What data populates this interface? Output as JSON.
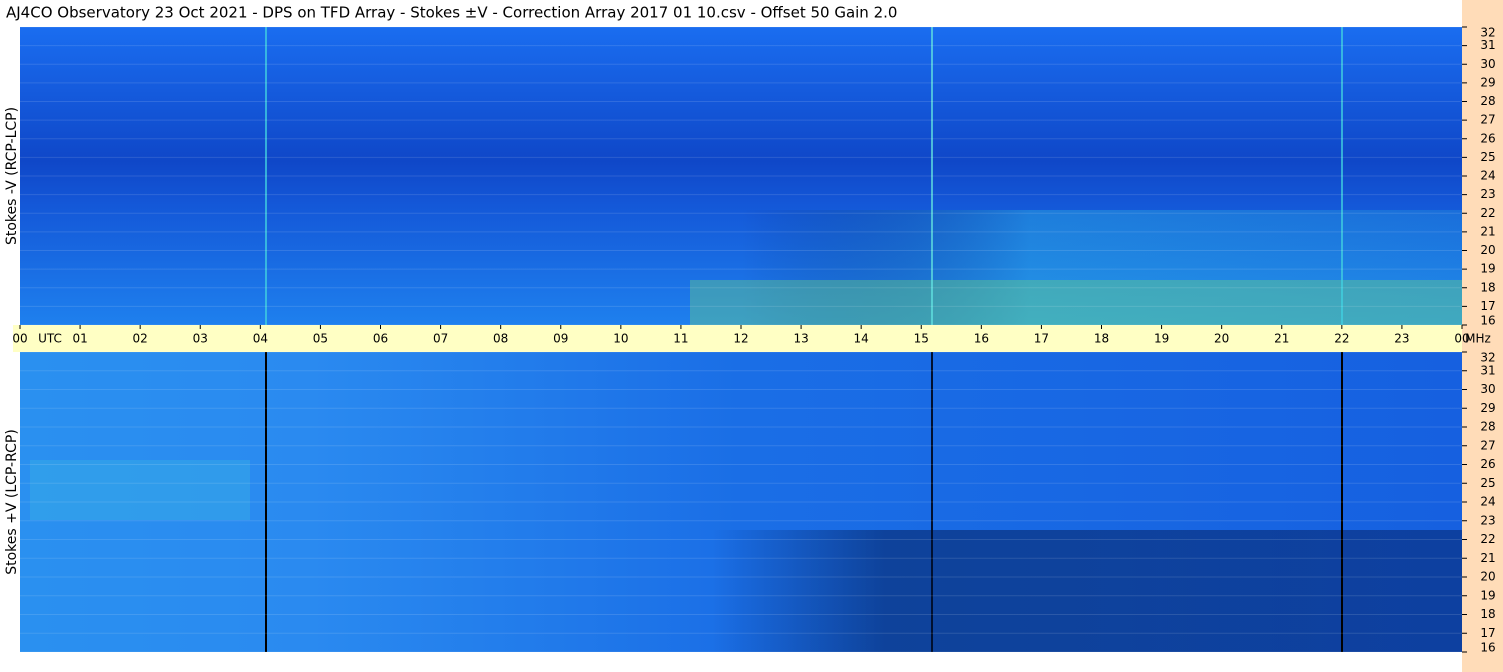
{
  "chart_data": [
    {
      "type": "heatmap",
      "title": "AJ4CO Observatory  23 Oct 2021  -  DPS on TFD Array  -  Stokes ±V  -  Correction Array 2017 01 10.csv  -  Offset 50  Gain 2.0",
      "ylabel": "Stokes -V (RCP-LCP)",
      "xlim": [
        0,
        24
      ],
      "xticks": [
        {
          "value": 0,
          "label": "00"
        },
        {
          "value": 1,
          "label": "01"
        },
        {
          "value": 2,
          "label": "02"
        },
        {
          "value": 3,
          "label": "03"
        },
        {
          "value": 4,
          "label": "04"
        },
        {
          "value": 5,
          "label": "05"
        },
        {
          "value": 6,
          "label": "06"
        },
        {
          "value": 7,
          "label": "07"
        },
        {
          "value": 8,
          "label": "08"
        },
        {
          "value": 9,
          "label": "09"
        },
        10,
        11,
        12,
        13,
        14,
        15,
        16,
        17,
        18,
        19,
        20,
        21,
        22,
        23,
        {
          "value": 24,
          "label": "00"
        }
      ],
      "x_unit": "UTC",
      "y_unit": "MHz",
      "ylim": [
        16,
        32
      ],
      "yticks": [
        16,
        17,
        18,
        19,
        20,
        21,
        22,
        23,
        24,
        25,
        26,
        27,
        28,
        29,
        30,
        31,
        32
      ]
    },
    {
      "type": "heatmap",
      "ylabel": "Stokes +V (LCP-RCP)",
      "xlim": [
        0,
        24
      ],
      "ylim": [
        16,
        32
      ],
      "yticks": [
        16,
        17,
        18,
        19,
        20,
        21,
        22,
        23,
        24,
        25,
        26,
        27,
        28,
        29,
        30,
        31,
        32
      ]
    }
  ]
}
